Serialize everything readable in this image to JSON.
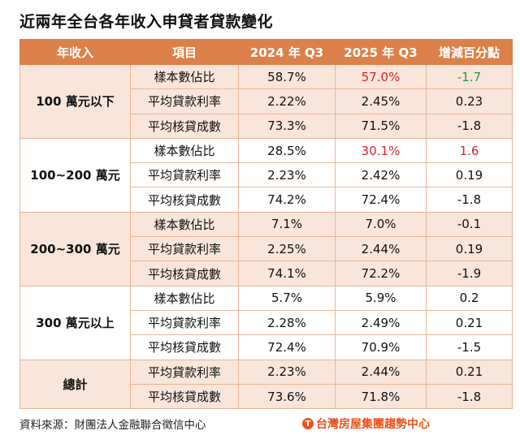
{
  "title": "近兩年全台各年收入申貸者貸款變化",
  "headers": [
    "年收入",
    "項目",
    "2024 年 Q3",
    "2025 年 Q3",
    "增減百分點"
  ],
  "groups": [
    {
      "name": "100 萬元以下",
      "rows": [
        [
          "樣本數佔比",
          "58.7%",
          "57.0%",
          "-1.7"
        ],
        [
          "平均貸款利率",
          "2.22%",
          "2.45%",
          "0.23"
        ],
        [
          "平均核貸成數",
          "73.3%",
          "71.5%",
          "-1.8"
        ]
      ]
    },
    {
      "name": "100~200 萬元",
      "rows": [
        [
          "樣本數佔比",
          "28.5%",
          "30.1%",
          "1.6"
        ],
        [
          "平均貸款利率",
          "2.23%",
          "2.42%",
          "0.19"
        ],
        [
          "平均核貸成數",
          "74.2%",
          "72.4%",
          "-1.8"
        ]
      ]
    },
    {
      "name": "200~300 萬元",
      "rows": [
        [
          "樣本數佔比",
          "7.1%",
          "7.0%",
          "-0.1"
        ],
        [
          "平均貸款利率",
          "2.25%",
          "2.44%",
          "0.19"
        ],
        [
          "平均核貸成數",
          "74.1%",
          "72.2%",
          "-1.9"
        ]
      ]
    },
    {
      "name": "300 萬元以上",
      "rows": [
        [
          "樣本數佔比",
          "5.7%",
          "5.9%",
          "0.2"
        ],
        [
          "平均貸款利率",
          "2.28%",
          "2.49%",
          "0.21"
        ],
        [
          "平均核貸成數",
          "72.4%",
          "70.9%",
          "-1.5"
        ]
      ]
    },
    {
      "name": "總計",
      "rows": [
        [
          "平均貸款利率",
          "2.23%",
          "2.44%",
          "0.21"
        ],
        [
          "平均核貸成數",
          "73.6%",
          "71.8%",
          "-1.8"
        ]
      ]
    }
  ],
  "highlights": {
    "0": {
      "2025": "red",
      "diff": "green"
    },
    "1": {
      "2025": "red",
      "diff": "red"
    }
  },
  "colors": {
    "header": "#dc804a",
    "tint": "#f9e5da",
    "red": "#d4232a",
    "green": "#1f9a3c"
  },
  "source": "資料來源：財團法人金融聯合徵信中心",
  "logo": "台灣房屋集團趨勢中心"
}
